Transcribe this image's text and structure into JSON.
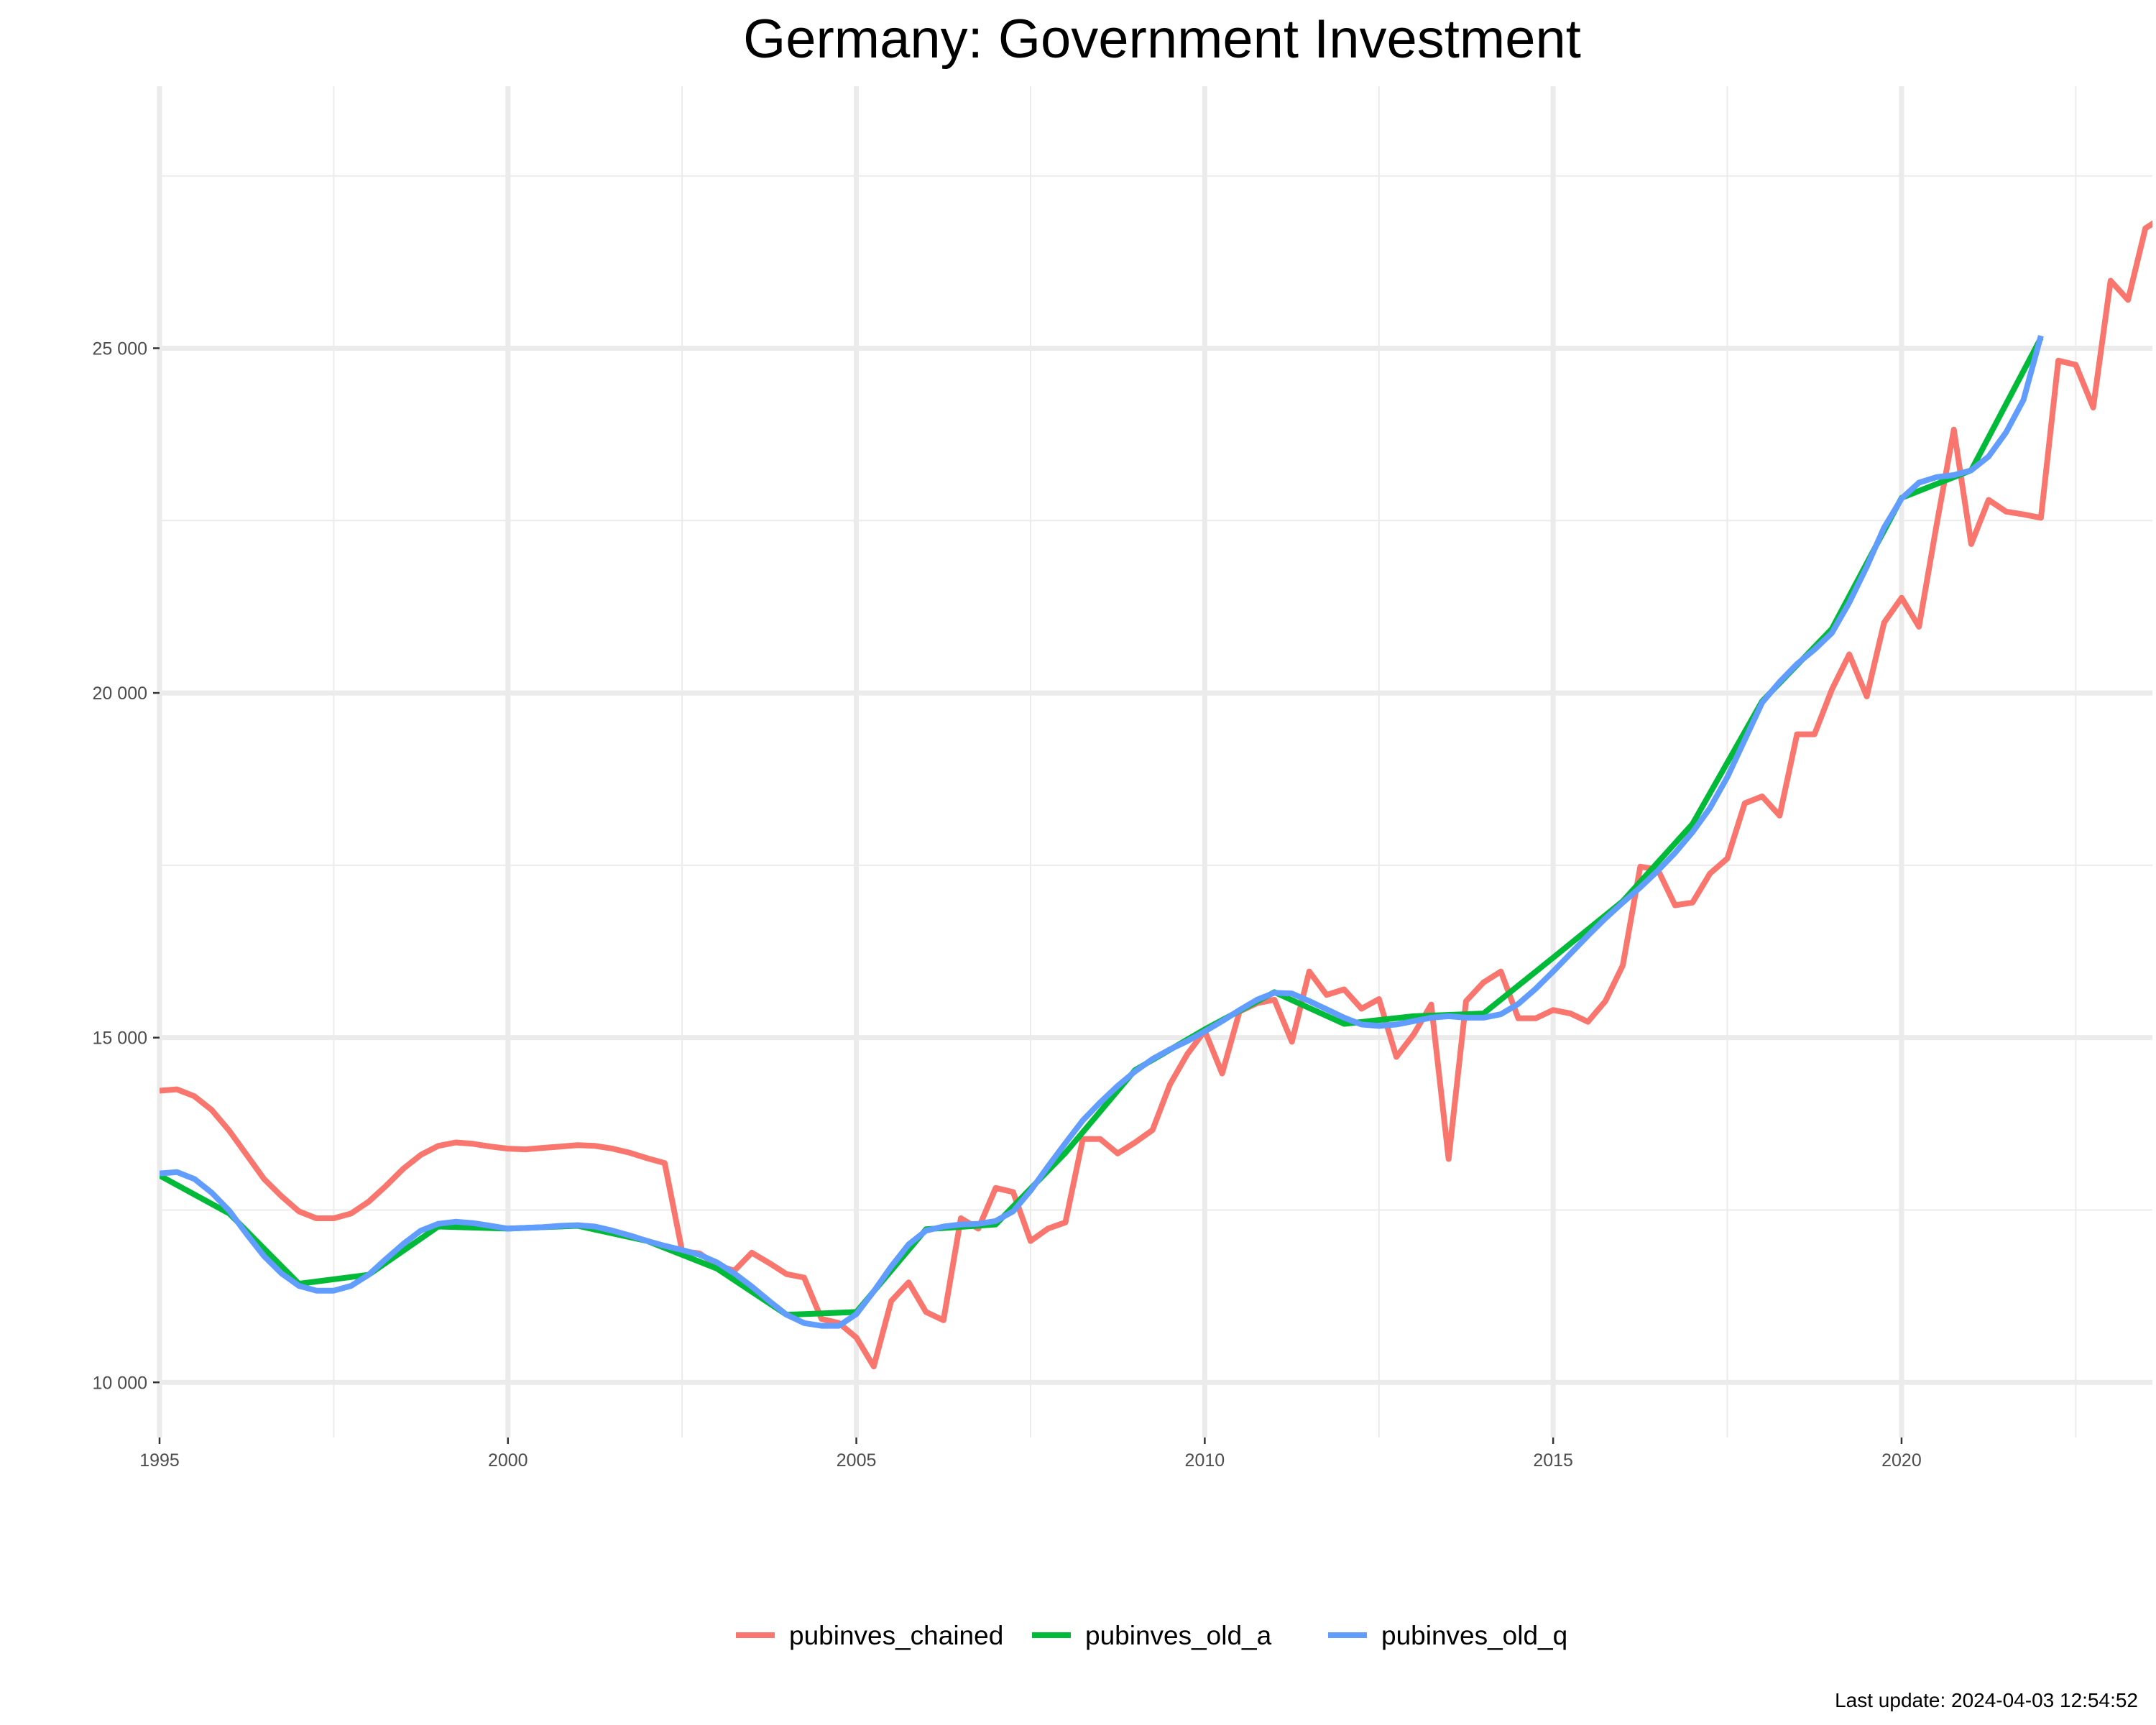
{
  "chart_data": {
    "type": "line",
    "title": "Germany: Government Investment",
    "xlabel": "",
    "ylabel": "",
    "xlim": [
      1995,
      2023.6
    ],
    "ylim": [
      9200,
      28800
    ],
    "x_ticks": [
      1995,
      2000,
      2005,
      2010,
      2015,
      2020
    ],
    "x_tick_labels": [
      "1995",
      "2000",
      "2005",
      "2010",
      "2015",
      "2020"
    ],
    "y_ticks": [
      10000,
      15000,
      20000,
      25000
    ],
    "y_tick_labels": [
      "10 000",
      "15 000",
      "20 000",
      "25 000"
    ],
    "grid": true,
    "legend_position": "bottom",
    "series": [
      {
        "name": "pubinves_chained",
        "color": "#F8766D",
        "points": [
          [
            1995.0,
            14230
          ],
          [
            1995.25,
            14250
          ],
          [
            1995.5,
            14150
          ],
          [
            1995.75,
            13950
          ],
          [
            1996.0,
            13650
          ],
          [
            1996.25,
            13300
          ],
          [
            1996.5,
            12950
          ],
          [
            1996.75,
            12700
          ],
          [
            1997.0,
            12480
          ],
          [
            1997.25,
            12380
          ],
          [
            1997.5,
            12380
          ],
          [
            1997.75,
            12450
          ],
          [
            1998.0,
            12620
          ],
          [
            1998.25,
            12850
          ],
          [
            1998.5,
            13100
          ],
          [
            1998.75,
            13300
          ],
          [
            1999.0,
            13430
          ],
          [
            1999.25,
            13480
          ],
          [
            1999.5,
            13460
          ],
          [
            1999.75,
            13420
          ],
          [
            2000.0,
            13390
          ],
          [
            2000.25,
            13380
          ],
          [
            2000.5,
            13400
          ],
          [
            2000.75,
            13420
          ],
          [
            2001.0,
            13440
          ],
          [
            2001.25,
            13430
          ],
          [
            2001.5,
            13390
          ],
          [
            2001.75,
            13330
          ],
          [
            2002.0,
            13250
          ],
          [
            2002.25,
            13180
          ],
          [
            2002.5,
            11900
          ],
          [
            2002.75,
            11870
          ],
          [
            2003.0,
            11700
          ],
          [
            2003.25,
            11620
          ],
          [
            2003.5,
            11880
          ],
          [
            2003.75,
            11730
          ],
          [
            2004.0,
            11570
          ],
          [
            2004.25,
            11520
          ],
          [
            2004.5,
            10920
          ],
          [
            2004.75,
            10860
          ],
          [
            2005.0,
            10650
          ],
          [
            2005.25,
            10230
          ],
          [
            2005.5,
            11180
          ],
          [
            2005.75,
            11450
          ],
          [
            2006.0,
            11020
          ],
          [
            2006.25,
            10900
          ],
          [
            2006.5,
            12380
          ],
          [
            2006.75,
            12230
          ],
          [
            2007.0,
            12820
          ],
          [
            2007.25,
            12760
          ],
          [
            2007.5,
            12050
          ],
          [
            2007.75,
            12230
          ],
          [
            2008.0,
            12320
          ],
          [
            2008.25,
            13530
          ],
          [
            2008.5,
            13530
          ],
          [
            2008.75,
            13320
          ],
          [
            2009.0,
            13480
          ],
          [
            2009.25,
            13660
          ],
          [
            2009.5,
            14320
          ],
          [
            2009.75,
            14760
          ],
          [
            2010.0,
            15100
          ],
          [
            2010.25,
            14480
          ],
          [
            2010.5,
            15380
          ],
          [
            2010.75,
            15500
          ],
          [
            2011.0,
            15550
          ],
          [
            2011.25,
            14940
          ],
          [
            2011.5,
            15960
          ],
          [
            2011.75,
            15620
          ],
          [
            2012.0,
            15700
          ],
          [
            2012.25,
            15420
          ],
          [
            2012.5,
            15560
          ],
          [
            2012.75,
            14720
          ],
          [
            2013.0,
            15050
          ],
          [
            2013.25,
            15480
          ],
          [
            2013.5,
            13240
          ],
          [
            2013.75,
            15530
          ],
          [
            2014.0,
            15800
          ],
          [
            2014.25,
            15960
          ],
          [
            2014.5,
            15280
          ],
          [
            2014.75,
            15280
          ],
          [
            2015.0,
            15400
          ],
          [
            2015.25,
            15350
          ],
          [
            2015.5,
            15230
          ],
          [
            2015.75,
            15530
          ],
          [
            2016.0,
            16050
          ],
          [
            2016.25,
            17480
          ],
          [
            2016.5,
            17440
          ],
          [
            2016.75,
            16920
          ],
          [
            2017.0,
            16960
          ],
          [
            2017.25,
            17380
          ],
          [
            2017.5,
            17600
          ],
          [
            2017.75,
            18400
          ],
          [
            2018.0,
            18500
          ],
          [
            2018.25,
            18220
          ],
          [
            2018.5,
            19400
          ],
          [
            2018.75,
            19400
          ],
          [
            2019.0,
            20050
          ],
          [
            2019.25,
            20560
          ],
          [
            2019.5,
            19950
          ],
          [
            2019.75,
            21020
          ],
          [
            2020.0,
            21380
          ],
          [
            2020.25,
            20960
          ],
          [
            2020.5,
            22420
          ],
          [
            2020.75,
            23820
          ],
          [
            2021.0,
            22160
          ],
          [
            2021.25,
            22800
          ],
          [
            2021.5,
            22630
          ],
          [
            2021.75,
            22590
          ],
          [
            2022.0,
            22540
          ],
          [
            2022.25,
            24820
          ],
          [
            2022.5,
            24760
          ],
          [
            2022.75,
            24140
          ],
          [
            2023.0,
            25980
          ],
          [
            2023.25,
            25700
          ],
          [
            2023.5,
            26740
          ],
          [
            2023.75,
            26900
          ],
          [
            2024.0,
            27850
          ]
        ]
      },
      {
        "name": "pubinves_old_a",
        "color": "#00BA38",
        "points": [
          [
            1995.0,
            13000
          ],
          [
            1996.0,
            12450
          ],
          [
            1997.0,
            11430
          ],
          [
            1998.0,
            11560
          ],
          [
            1999.0,
            12260
          ],
          [
            2000.0,
            12230
          ],
          [
            2001.0,
            12270
          ],
          [
            2002.0,
            12050
          ],
          [
            2003.0,
            11650
          ],
          [
            2004.0,
            10980
          ],
          [
            2005.0,
            11020
          ],
          [
            2006.0,
            12220
          ],
          [
            2007.0,
            12290
          ],
          [
            2008.0,
            13330
          ],
          [
            2009.0,
            14530
          ],
          [
            2010.0,
            15120
          ],
          [
            2011.0,
            15660
          ],
          [
            2012.0,
            15200
          ],
          [
            2013.0,
            15310
          ],
          [
            2014.0,
            15350
          ],
          [
            2015.0,
            16160
          ],
          [
            2016.0,
            16980
          ],
          [
            2017.0,
            18100
          ],
          [
            2018.0,
            19880
          ],
          [
            2019.0,
            20930
          ],
          [
            2020.0,
            22830
          ],
          [
            2021.0,
            23230
          ],
          [
            2022.0,
            25150
          ]
        ]
      },
      {
        "name": "pubinves_old_q",
        "color": "#619CFF",
        "points": [
          [
            1995.0,
            13030
          ],
          [
            1995.25,
            13050
          ],
          [
            1995.5,
            12950
          ],
          [
            1995.75,
            12750
          ],
          [
            1996.0,
            12490
          ],
          [
            1996.25,
            12150
          ],
          [
            1996.5,
            11830
          ],
          [
            1996.75,
            11580
          ],
          [
            1997.0,
            11400
          ],
          [
            1997.25,
            11330
          ],
          [
            1997.5,
            11330
          ],
          [
            1997.75,
            11400
          ],
          [
            1998.0,
            11560
          ],
          [
            1998.25,
            11790
          ],
          [
            1998.5,
            12010
          ],
          [
            1998.75,
            12200
          ],
          [
            1999.0,
            12300
          ],
          [
            1999.25,
            12330
          ],
          [
            1999.5,
            12310
          ],
          [
            1999.75,
            12270
          ],
          [
            2000.0,
            12230
          ],
          [
            2000.25,
            12240
          ],
          [
            2000.5,
            12250
          ],
          [
            2000.75,
            12270
          ],
          [
            2001.0,
            12280
          ],
          [
            2001.25,
            12260
          ],
          [
            2001.5,
            12200
          ],
          [
            2001.75,
            12130
          ],
          [
            2002.0,
            12050
          ],
          [
            2002.25,
            11980
          ],
          [
            2002.5,
            11920
          ],
          [
            2002.75,
            11850
          ],
          [
            2003.0,
            11740
          ],
          [
            2003.25,
            11580
          ],
          [
            2003.5,
            11390
          ],
          [
            2003.75,
            11180
          ],
          [
            2004.0,
            10980
          ],
          [
            2004.25,
            10860
          ],
          [
            2004.5,
            10820
          ],
          [
            2004.75,
            10820
          ],
          [
            2005.0,
            10990
          ],
          [
            2005.25,
            11320
          ],
          [
            2005.5,
            11680
          ],
          [
            2005.75,
            12000
          ],
          [
            2006.0,
            12200
          ],
          [
            2006.25,
            12260
          ],
          [
            2006.5,
            12290
          ],
          [
            2006.75,
            12300
          ],
          [
            2007.0,
            12340
          ],
          [
            2007.25,
            12480
          ],
          [
            2007.5,
            12780
          ],
          [
            2007.75,
            13130
          ],
          [
            2008.0,
            13470
          ],
          [
            2008.25,
            13800
          ],
          [
            2008.5,
            14060
          ],
          [
            2008.75,
            14300
          ],
          [
            2009.0,
            14510
          ],
          [
            2009.25,
            14690
          ],
          [
            2009.5,
            14830
          ],
          [
            2009.75,
            14950
          ],
          [
            2010.0,
            15090
          ],
          [
            2010.25,
            15240
          ],
          [
            2010.5,
            15400
          ],
          [
            2010.75,
            15550
          ],
          [
            2011.0,
            15650
          ],
          [
            2011.25,
            15640
          ],
          [
            2011.5,
            15530
          ],
          [
            2011.75,
            15410
          ],
          [
            2012.0,
            15290
          ],
          [
            2012.25,
            15190
          ],
          [
            2012.5,
            15170
          ],
          [
            2012.75,
            15190
          ],
          [
            2013.0,
            15240
          ],
          [
            2013.25,
            15290
          ],
          [
            2013.5,
            15310
          ],
          [
            2013.75,
            15290
          ],
          [
            2014.0,
            15290
          ],
          [
            2014.25,
            15340
          ],
          [
            2014.5,
            15490
          ],
          [
            2014.75,
            15710
          ],
          [
            2015.0,
            15960
          ],
          [
            2015.25,
            16220
          ],
          [
            2015.5,
            16480
          ],
          [
            2015.75,
            16730
          ],
          [
            2016.0,
            16960
          ],
          [
            2016.25,
            17180
          ],
          [
            2016.5,
            17420
          ],
          [
            2016.75,
            17680
          ],
          [
            2017.0,
            17980
          ],
          [
            2017.25,
            18330
          ],
          [
            2017.5,
            18780
          ],
          [
            2017.75,
            19320
          ],
          [
            2018.0,
            19860
          ],
          [
            2018.25,
            20160
          ],
          [
            2018.5,
            20420
          ],
          [
            2018.75,
            20630
          ],
          [
            2019.0,
            20870
          ],
          [
            2019.25,
            21310
          ],
          [
            2019.5,
            21830
          ],
          [
            2019.75,
            22400
          ],
          [
            2020.0,
            22820
          ],
          [
            2020.25,
            23050
          ],
          [
            2020.5,
            23130
          ],
          [
            2020.75,
            23160
          ],
          [
            2021.0,
            23230
          ],
          [
            2021.25,
            23430
          ],
          [
            2021.5,
            23780
          ],
          [
            2021.75,
            24250
          ],
          [
            2022.0,
            25180
          ]
        ]
      }
    ]
  },
  "legend": {
    "items": [
      "pubinves_chained",
      "pubinves_old_a",
      "pubinves_old_q"
    ]
  },
  "caption": "Last update: 2024-04-03 12:54:52"
}
